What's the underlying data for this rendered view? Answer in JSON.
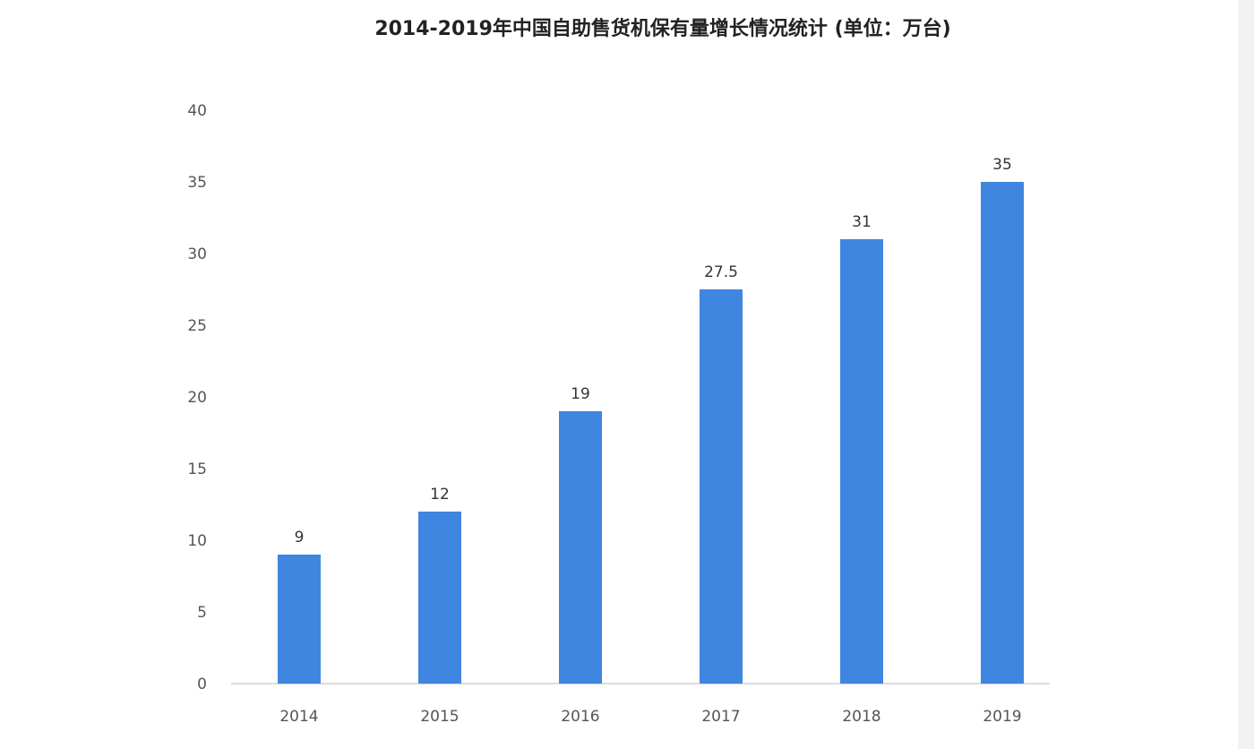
{
  "chart_data": {
    "type": "bar",
    "title": "2014-2019年中国自助售货机保有量增长情况统计 (单位：万台)",
    "categories": [
      "2014",
      "2015",
      "2016",
      "2017",
      "2018",
      "2019"
    ],
    "values": [
      9,
      12,
      19,
      27.5,
      31,
      35
    ],
    "data_labels": [
      "9",
      "12",
      "19",
      "27.5",
      "31",
      "35"
    ],
    "xlabel": "",
    "ylabel": "",
    "ylim": [
      0,
      40
    ],
    "yticks": [
      0,
      5,
      10,
      15,
      20,
      25,
      30,
      35,
      40
    ],
    "grid": false,
    "legend": "none",
    "bar_color": "#3f86e0"
  }
}
